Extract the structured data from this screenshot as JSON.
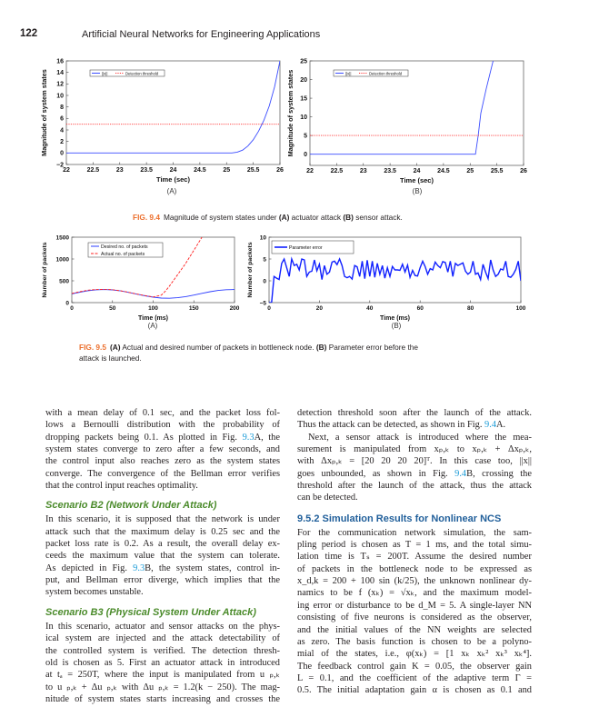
{
  "header": {
    "page_number": "122",
    "book_title": "Artificial Neural Networks for Engineering Applications"
  },
  "figure_9_4": {
    "label": "FIG. 9.4",
    "caption_parts": [
      "Magnitude of system states under ",
      "(A)",
      " actuator attack ",
      "(B)",
      " sensor attack."
    ],
    "sub_a": "(A)",
    "sub_b": "(B)"
  },
  "figure_9_5": {
    "label": "FIG. 9.5",
    "caption_parts": [
      "(A)",
      " Actual and desired number of packets in bottleneck node. ",
      "(B)",
      " Parameter error before the"
    ],
    "caption_line2": "attack is launched.",
    "sub_a": "(A)",
    "sub_b": "(B)"
  },
  "chart_data": [
    {
      "id": "fig94a",
      "type": "line",
      "xlabel": "Time (sec)",
      "ylabel": "Magnitude of system states",
      "xlim": [
        22,
        26
      ],
      "ylim": [
        -2,
        16
      ],
      "xticks": [
        "22",
        "22.5",
        "23",
        "23.5",
        "24",
        "24.5",
        "25",
        "25.5",
        "26"
      ],
      "yticks": [
        "−2",
        "0",
        "2",
        "4",
        "6",
        "8",
        "10",
        "12",
        "14",
        "16"
      ],
      "legend": "top-left",
      "series": [
        {
          "name": "||x||",
          "color": "#3a4cff",
          "style": "solid",
          "x": [
            22,
            25.1,
            25.2,
            25.3,
            25.4,
            25.5,
            25.6,
            25.7,
            25.8,
            25.9,
            26
          ],
          "y": [
            0,
            0,
            0.15,
            0.5,
            1.2,
            2.3,
            3.8,
            5.7,
            8.2,
            11.5,
            16
          ]
        },
        {
          "name": "Detection threshold",
          "color": "#ff3030",
          "style": "dotted",
          "x": [
            22,
            26
          ],
          "y": [
            5,
            5
          ]
        }
      ]
    },
    {
      "id": "fig94b",
      "type": "line",
      "xlabel": "Time (sec)",
      "ylabel": "Magnitude of system states",
      "xlim": [
        22,
        26
      ],
      "ylim": [
        -3,
        25
      ],
      "xticks": [
        "22",
        "22.5",
        "23",
        "23.5",
        "24",
        "24.5",
        "25",
        "25.5",
        "26"
      ],
      "yticks": [
        "0",
        "5",
        "10",
        "15",
        "20",
        "25"
      ],
      "ytick_values": [
        0,
        5,
        10,
        15,
        20,
        25
      ],
      "legend": "top-left",
      "series": [
        {
          "name": "||x||",
          "color": "#3a4cff",
          "style": "solid",
          "x": [
            22,
            25.1,
            25.15,
            25.2,
            25.3,
            25.43
          ],
          "y": [
            0,
            0,
            5,
            11,
            17.5,
            25
          ]
        },
        {
          "name": "Detection threshold",
          "color": "#ff3030",
          "style": "dotted",
          "x": [
            22,
            26
          ],
          "y": [
            5,
            5
          ]
        }
      ]
    },
    {
      "id": "fig95a",
      "type": "line",
      "xlabel": "Time (ms)",
      "ylabel": "Number of packets",
      "xlim": [
        0,
        200
      ],
      "ylim": [
        0,
        1500
      ],
      "xticks": [
        "0",
        "50",
        "100",
        "150",
        "200"
      ],
      "yticks": [
        "0",
        "500",
        "1000",
        "1500"
      ],
      "legend": "top-left",
      "series": [
        {
          "name": "Desired no. of packets",
          "color": "#2b3cff",
          "style": "solid",
          "x": [
            0,
            10,
            20,
            30,
            40,
            50,
            60,
            70,
            80,
            90,
            100,
            110,
            120,
            130,
            140,
            150,
            160,
            170,
            180,
            190,
            200
          ],
          "y": [
            200,
            239,
            272,
            293,
            300,
            291,
            268,
            234,
            194,
            156,
            124,
            105,
            100,
            112,
            137,
            172,
            212,
            250,
            279,
            296,
            299
          ]
        },
        {
          "name": "Actual no. of packets",
          "color": "#ff2020",
          "style": "dashed",
          "x": [
            0,
            10,
            20,
            30,
            40,
            50,
            60,
            70,
            80,
            90,
            100,
            105,
            110,
            115,
            120,
            130,
            140,
            150,
            160
          ],
          "y": [
            210,
            250,
            285,
            300,
            305,
            295,
            270,
            235,
            195,
            160,
            130,
            150,
            170,
            260,
            380,
            640,
            900,
            1200,
            1500
          ]
        }
      ]
    },
    {
      "id": "fig95b",
      "type": "line",
      "xlabel": "Time (ms)",
      "ylabel": "Number of packets",
      "xlim": [
        0,
        100
      ],
      "ylim": [
        -5,
        10
      ],
      "xticks": [
        "0",
        "20",
        "40",
        "60",
        "80",
        "100"
      ],
      "yticks": [
        "−5",
        "0",
        "5",
        "10"
      ],
      "legend": "top-left",
      "series": [
        {
          "name": "Parameter error",
          "color": "#1020ff",
          "style": "solid",
          "y": [
            -5,
            -5,
            1,
            0.6,
            0.3,
            4,
            5,
            3,
            1,
            5,
            3.5,
            3.8,
            2.5,
            5,
            4.8,
            1,
            2,
            2.2,
            4.8,
            2.3,
            3.8,
            0.3,
            3.5,
            1.5,
            2,
            4.3,
            4.5,
            3.7,
            5,
            3.5,
            1,
            0.7,
            1,
            0.4,
            3.5,
            3.2,
            1,
            4.5,
            0.5,
            4.7,
            1,
            4.5,
            0.8,
            4,
            1.5,
            3.5,
            0.6,
            3,
            1,
            3.3,
            2.5,
            2.5,
            2.4,
            3.8,
            2,
            3.6,
            0.8,
            2.4,
            1.2,
            1.1,
            3,
            4.5,
            3.3,
            1.5,
            2.8,
            2.5,
            4.3,
            3.5,
            3,
            4.4,
            4.2,
            2,
            4.5,
            1,
            4,
            3.5,
            3.8,
            4.1,
            2.2,
            1.5,
            2,
            4.5,
            1.5,
            1.8,
            0.3,
            3.8,
            2,
            0.5,
            4.8,
            2.5,
            1,
            1.5,
            2.7,
            2.5,
            4.5,
            1,
            0.8,
            1.5,
            2.6,
            4.5,
            0
          ]
        }
      ]
    }
  ],
  "body": {
    "left": [
      {
        "type": "p",
        "lines": [
          [
            [
              "with a mean delay of 0.1 sec, and the packet loss fol-"
            ]
          ],
          [
            [
              "lows a Bernoulli distribution with the probability of"
            ]
          ],
          [
            [
              "dropping packets being 0.1. As plotted in Fig. "
            ],
            [
              "9.3",
              "ref"
            ],
            [
              "A, the"
            ]
          ],
          [
            [
              "system states converge to zero after a few seconds, and"
            ]
          ],
          [
            [
              "the control input also reaches zero as the system states"
            ]
          ],
          [
            [
              "converge. The convergence of the Bellman error verifies"
            ]
          ],
          [
            [
              "that the control input reaches optimality."
            ]
          ]
        ]
      },
      {
        "type": "scn",
        "text": "Scenario B2 (Network Under Attack)"
      },
      {
        "type": "p",
        "lines": [
          [
            [
              "In this scenario, it is supposed that the network is under"
            ]
          ],
          [
            [
              "attack such that the maximum delay is 0.25 sec and the"
            ]
          ],
          [
            [
              "packet loss rate is 0.2. As a result, the overall delay ex-"
            ]
          ],
          [
            [
              "ceeds the maximum value that the system can tolerate."
            ]
          ],
          [
            [
              "As depicted in Fig. "
            ],
            [
              "9.3",
              "ref"
            ],
            [
              "B, the system states, control in-"
            ]
          ],
          [
            [
              "put, and Bellman error diverge, which implies that the"
            ]
          ],
          [
            [
              "system becomes unstable."
            ]
          ]
        ]
      },
      {
        "type": "scn",
        "text": "Scenario B3 (Physical System Under Attack)"
      },
      {
        "type": "p",
        "lines": [
          [
            [
              "In this scenario, actuator and sensor attacks on the phys-"
            ]
          ],
          [
            [
              "ical system are injected and the attack detectability of"
            ]
          ],
          [
            [
              "the controlled system is verified. The detection thresh-"
            ]
          ],
          [
            [
              "old is chosen as 5. First an actuator attack in introduced"
            ]
          ],
          [
            [
              "at tₐ = 250T, where the input is manipulated from u ₚ,ₖ"
            ]
          ],
          [
            [
              "to u ₚ,ₖ + Δu ₚ,ₖ with Δu ₚ,ₖ = 1.2(k − 250). The mag-"
            ]
          ],
          [
            [
              "nitude of system states starts increasing and crosses the"
            ]
          ]
        ],
        "cont": true
      }
    ],
    "right": [
      {
        "type": "p",
        "lines": [
          [
            [
              "detection threshold soon after the launch of the attack."
            ]
          ],
          [
            [
              "Thus the attack can be detected, as shown in Fig. "
            ],
            [
              "9.4",
              "ref"
            ],
            [
              "A."
            ]
          ]
        ]
      },
      {
        "type": "p",
        "indent": true,
        "lines": [
          [
            [
              "Next, a sensor attack is introduced where the mea-"
            ]
          ],
          [
            [
              "surement is manipulated from xₚ,ₖ to xₚ,ₖ + Δxₚ,ₖ,"
            ]
          ],
          [
            [
              "with Δxₚ,ₖ = [20   20   20   20]ᵀ. In this case too, ||x||"
            ]
          ],
          [
            [
              "goes unbounded, as shown in Fig. "
            ],
            [
              "9.4",
              "ref"
            ],
            [
              "B, crossing the"
            ]
          ],
          [
            [
              "threshold after the launch of the attack, thus the attack"
            ]
          ],
          [
            [
              "can be detected."
            ]
          ]
        ]
      },
      {
        "type": "sec",
        "text": "9.5.2 Simulation Results for Nonlinear NCS"
      },
      {
        "type": "p",
        "lines": [
          [
            [
              "For the communication network simulation, the sam-"
            ]
          ],
          [
            [
              "pling period is chosen as T = 1 ms, and the total simu-"
            ]
          ],
          [
            [
              "lation time is Tₛ = 200T. Assume the desired number"
            ]
          ],
          [
            [
              "of packets in the bottleneck node to be expressed as"
            ]
          ],
          [
            [
              "x_d,k = 200 + 100 sin (k/25), the unknown nonlinear dy-"
            ]
          ],
          [
            [
              "namics to be f (xₖ) = √xₖ, and the maximum model-"
            ]
          ],
          [
            [
              "ing error or disturbance to be d_M = 5. A single-layer NN"
            ]
          ],
          [
            [
              "consisting of five neurons is considered as the observer,"
            ]
          ],
          [
            [
              "and the initial values of the NN weights are selected"
            ]
          ],
          [
            [
              "as zero. The basis function is chosen to be a polyno-"
            ]
          ],
          [
            [
              "mial of the states, i.e., φ(xₖ) = [1   xₖ   xₖ²   xₖ³   xₖ⁴]."
            ]
          ],
          [
            [
              "The feedback control gain K = 0.05, the observer gain"
            ]
          ],
          [
            [
              "L = 0.1, and the coefficient of the adaptive term Γ ="
            ]
          ],
          [
            [
              "0.5. The initial adaptation gain α is chosen as 0.1 and"
            ]
          ]
        ],
        "cont": true
      }
    ]
  }
}
